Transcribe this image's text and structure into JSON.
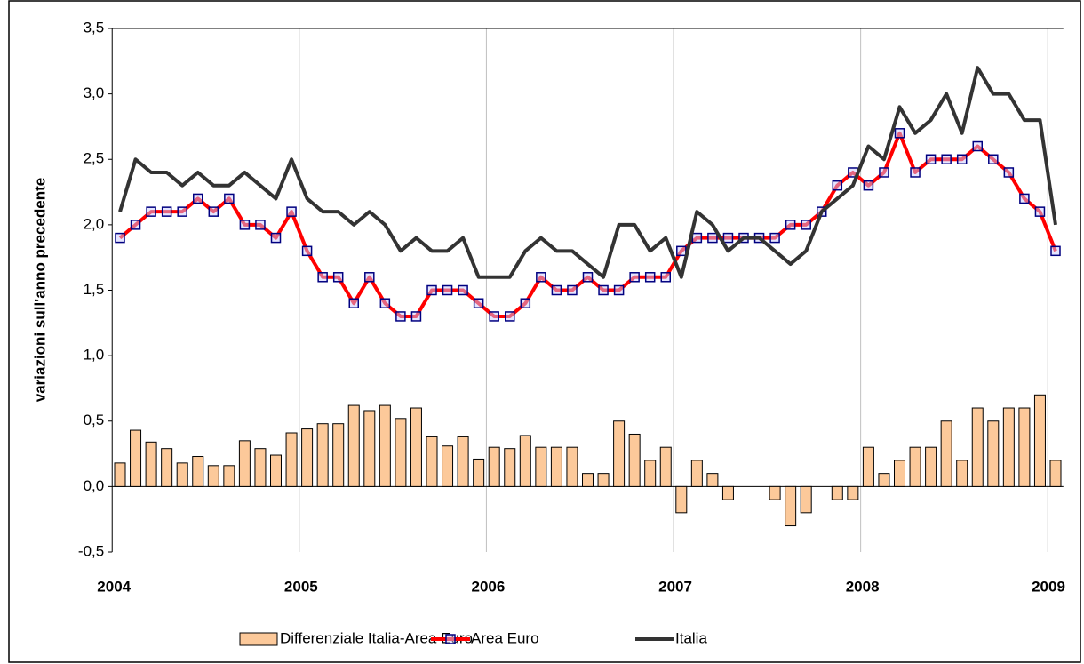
{
  "chart_data": {
    "type": "combo",
    "ylabel": "variazioni sull'anno precedente",
    "categories": [
      "2004",
      null,
      null,
      null,
      null,
      null,
      null,
      null,
      null,
      null,
      null,
      null,
      "2005",
      null,
      null,
      null,
      null,
      null,
      null,
      null,
      null,
      null,
      null,
      null,
      "2006",
      null,
      null,
      null,
      null,
      null,
      null,
      null,
      null,
      null,
      null,
      null,
      "2007",
      null,
      null,
      null,
      null,
      null,
      null,
      null,
      null,
      null,
      null,
      null,
      "2008",
      null,
      null,
      null,
      null,
      null,
      null,
      null,
      null,
      null,
      null,
      null,
      "2009"
    ],
    "ylim": [
      -0.5,
      3.5
    ],
    "yticks": [
      {
        "value": -0.5,
        "label": "-0,5"
      },
      {
        "value": 0,
        "label": "0,0"
      },
      {
        "value": 0.5,
        "label": "0,5"
      },
      {
        "value": 1,
        "label": "1,0"
      },
      {
        "value": 1.5,
        "label": "1,5"
      },
      {
        "value": 2,
        "label": "2,0"
      },
      {
        "value": 2.5,
        "label": "2,5"
      },
      {
        "value": 3,
        "label": "3,0"
      },
      {
        "value": 3.5,
        "label": "3,5"
      }
    ],
    "grid": true,
    "legend": "bottom",
    "series": [
      {
        "name": "Differenziale Italia-Area Euro",
        "type": "bar",
        "color": "#fcc99a",
        "values": [
          0.18,
          0.43,
          0.34,
          0.29,
          0.18,
          0.23,
          0.16,
          0.16,
          0.35,
          0.29,
          0.24,
          0.41,
          0.44,
          0.48,
          0.48,
          0.62,
          0.58,
          0.62,
          0.52,
          0.6,
          0.38,
          0.31,
          0.38,
          0.21,
          0.3,
          0.29,
          0.39,
          0.3,
          0.3,
          0.3,
          0.1,
          0.1,
          0.5,
          0.4,
          0.2,
          0.3,
          -0.2,
          0.2,
          0.1,
          -0.1,
          0,
          0,
          -0.1,
          -0.3,
          -0.2,
          0,
          -0.1,
          -0.1,
          0.3,
          0.1,
          0.2,
          0.3,
          0.3,
          0.5,
          0.2,
          0.6,
          0.5,
          0.6,
          0.6,
          0.7,
          0.2
        ]
      },
      {
        "name": "Area Euro",
        "type": "line",
        "color": "#ff0000",
        "marker_color": "#000080",
        "values": [
          1.9,
          2.0,
          2.1,
          2.1,
          2.1,
          2.2,
          2.1,
          2.2,
          2.0,
          2.0,
          1.9,
          2.1,
          1.8,
          1.6,
          1.6,
          1.4,
          1.6,
          1.4,
          1.3,
          1.3,
          1.5,
          1.5,
          1.5,
          1.4,
          1.3,
          1.3,
          1.4,
          1.6,
          1.5,
          1.5,
          1.6,
          1.5,
          1.5,
          1.6,
          1.6,
          1.6,
          1.8,
          1.9,
          1.9,
          1.9,
          1.9,
          1.9,
          1.9,
          2.0,
          2.0,
          2.1,
          2.3,
          2.4,
          2.3,
          2.4,
          2.7,
          2.4,
          2.5,
          2.5,
          2.5,
          2.6,
          2.5,
          2.4,
          2.2,
          2.1,
          1.8
        ]
      },
      {
        "name": "Italia",
        "type": "line",
        "color": "#333333",
        "values": [
          2.1,
          2.5,
          2.4,
          2.4,
          2.3,
          2.4,
          2.3,
          2.3,
          2.4,
          2.3,
          2.2,
          2.5,
          2.2,
          2.1,
          2.1,
          2.0,
          2.1,
          2.0,
          1.8,
          1.9,
          1.8,
          1.8,
          1.9,
          1.6,
          1.6,
          1.6,
          1.8,
          1.9,
          1.8,
          1.8,
          1.7,
          1.6,
          2.0,
          2.0,
          1.8,
          1.9,
          1.6,
          2.1,
          2.0,
          1.8,
          1.9,
          1.9,
          1.8,
          1.7,
          1.8,
          2.1,
          2.2,
          2.3,
          2.6,
          2.5,
          2.9,
          2.7,
          2.8,
          3.0,
          2.7,
          3.2,
          3.0,
          3.0,
          2.8,
          2.8,
          2.0
        ]
      }
    ]
  }
}
